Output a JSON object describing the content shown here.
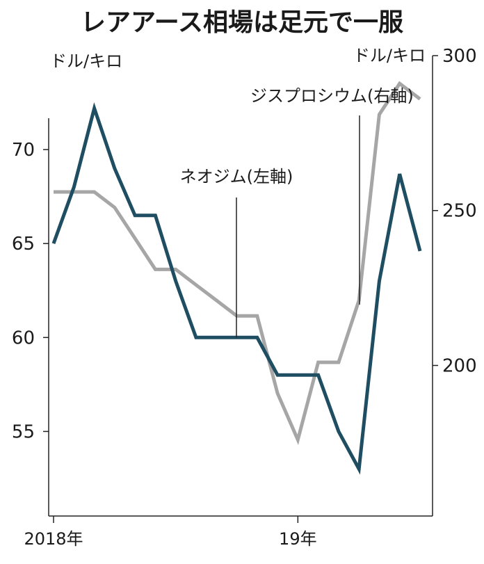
{
  "chart_data": {
    "type": "line",
    "title": "レアアース相場は足元で一服",
    "left_axis": {
      "unit": "ドル/キロ",
      "ticks": [
        55,
        60,
        65,
        70
      ],
      "range": [
        50.5,
        75
      ]
    },
    "right_axis": {
      "unit": "ドル/キロ",
      "ticks": [
        200,
        250,
        300
      ],
      "range": [
        151.4,
        300
      ]
    },
    "x_range": [
      0,
      18
    ],
    "x_ticks": [
      {
        "x": 0,
        "label": "2018年"
      },
      {
        "x": 12,
        "label": "19年"
      }
    ],
    "series": [
      {
        "name": "ネオジム(左軸)",
        "axis": "left",
        "color": "#1f4e62",
        "x": [
          0,
          1,
          2,
          3,
          4,
          5,
          6,
          7,
          8,
          9,
          10,
          11,
          12,
          13,
          14,
          15,
          16,
          17,
          18
        ],
        "values": [
          65,
          68,
          72.2,
          69,
          66.5,
          66.5,
          63,
          60,
          60,
          60,
          60,
          58,
          58,
          58,
          55,
          53,
          63,
          68.7,
          64.6
        ]
      },
      {
        "name": "ジスプロシウム(右軸)",
        "axis": "right",
        "color": "#a6a6a6",
        "x": [
          0,
          1,
          2,
          3,
          4,
          5,
          6,
          7,
          8,
          9,
          10,
          11,
          12,
          13,
          14,
          15,
          16,
          17,
          18
        ],
        "values": [
          256,
          256,
          256,
          251,
          241,
          231,
          231,
          226,
          221,
          216,
          216,
          191,
          176,
          201,
          201,
          221,
          281,
          291,
          286
        ]
      }
    ],
    "annotations": [
      {
        "text": "ネオジム(左軸)",
        "series": 0,
        "x": 9
      },
      {
        "text": "ジスプロシウム(右軸)",
        "series": 1,
        "x": 15
      }
    ]
  }
}
